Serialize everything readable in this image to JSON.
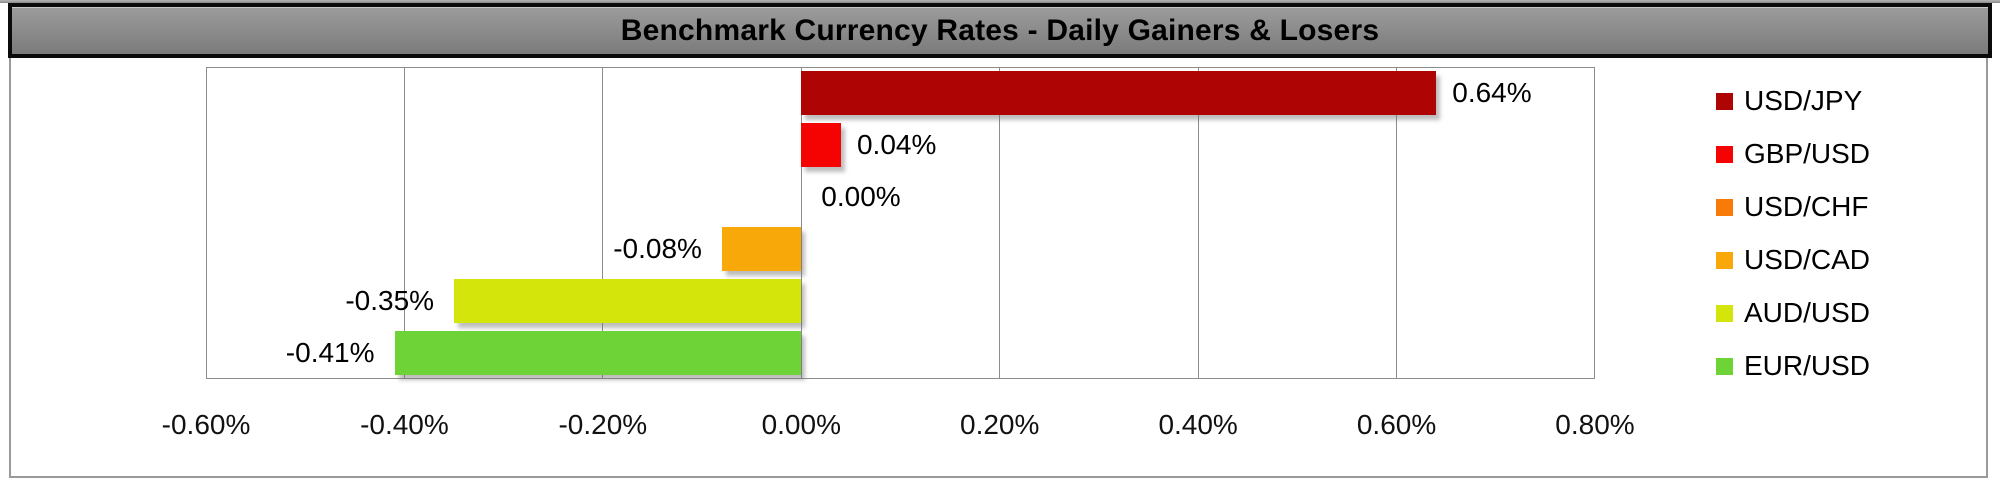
{
  "title": "Benchmark Currency Rates - Daily Gainers & Losers",
  "chart_data": {
    "type": "bar",
    "orientation": "horizontal",
    "title": "Benchmark Currency Rates - Daily Gainers & Losers",
    "series": [
      {
        "name": "USD/JPY",
        "value": 0.64,
        "label": "0.64%",
        "color": "#ae0404"
      },
      {
        "name": "GBP/USD",
        "value": 0.04,
        "label": "0.04%",
        "color": "#f50202"
      },
      {
        "name": "USD/CHF",
        "value": 0.0,
        "label": "0.00%",
        "color": "#f87b07"
      },
      {
        "name": "USD/CAD",
        "value": -0.08,
        "label": "-0.08%",
        "color": "#f8a808"
      },
      {
        "name": "AUD/USD",
        "value": -0.35,
        "label": "-0.35%",
        "color": "#d3e50b"
      },
      {
        "name": "EUR/USD",
        "value": -0.41,
        "label": "-0.41%",
        "color": "#6ed336"
      }
    ],
    "x_axis": {
      "min": -0.6,
      "max": 0.8,
      "tick_step": 0.2,
      "ticks": [
        -0.6,
        -0.4,
        -0.2,
        0.0,
        0.2,
        0.4,
        0.6,
        0.8
      ],
      "tick_labels": [
        "-0.60%",
        "-0.40%",
        "-0.20%",
        "0.00%",
        "0.20%",
        "0.40%",
        "0.60%",
        "0.80%"
      ]
    },
    "grid": true,
    "legend_position": "right",
    "colors": {
      "title_bar_fill": "#8a8a8a",
      "title_bar_border": "#0b0b0b",
      "axis_line": "#8c8c8c",
      "text": "#000000"
    }
  }
}
